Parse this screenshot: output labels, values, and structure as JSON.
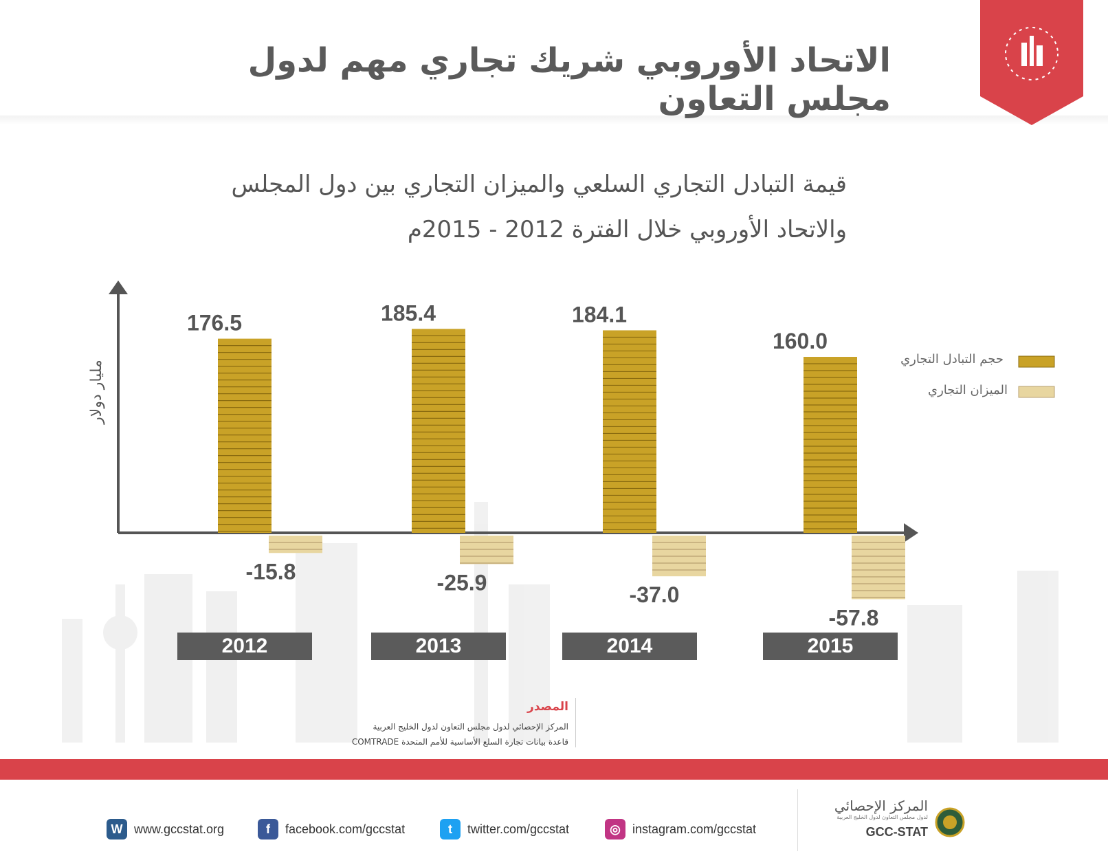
{
  "header": {
    "title": "الاتحاد الأوروبي شريك تجاري مهم لدول مجلس التعاون"
  },
  "chart_data": {
    "type": "bar",
    "title_lines": [
      "قيمة التبادل التجاري السلعي والميزان التجاري بين دول المجلس",
      "والاتحاد الأوروبي خلال الفترة 2012 - 2015م"
    ],
    "ylabel": "مليار دولار",
    "categories": [
      "2012",
      "2013",
      "2014",
      "2015"
    ],
    "series": [
      {
        "name": "حجم التبادل التجاري",
        "values": [
          176.5,
          185.4,
          184.1,
          160.0
        ],
        "labels": [
          "176.5",
          "185.4",
          "184.1",
          "160.0"
        ]
      },
      {
        "name": "الميزان التجاري",
        "values": [
          -15.8,
          -25.9,
          -37.0,
          -57.8
        ],
        "labels": [
          "-15.8",
          "-25.9",
          "-37.0",
          "-57.8"
        ]
      }
    ],
    "colors": {
      "trade_volume": "#c9a227",
      "trade_balance": "#e8d6a0"
    },
    "legend_position": "right"
  },
  "source": {
    "title": "المصدر",
    "lines": [
      "المركز الإحصائي لدول مجلس التعاون لدول الخليج العربية",
      "قاعدة بيانات تجارة السلع الأساسية للأمم المتحدة COMTRADE"
    ]
  },
  "footer": {
    "links": [
      {
        "icon": "wordpress-icon",
        "text": "www.gccstat.org"
      },
      {
        "icon": "facebook-icon",
        "text": "facebook.com/gccstat"
      },
      {
        "icon": "twitter-icon",
        "text": "twitter.com/gccstat"
      },
      {
        "icon": "instagram-icon",
        "text": "instagram.com/gccstat"
      }
    ],
    "logo_arabic": "المركز الإحصائي",
    "logo_sub": "لدول مجلس التعاون لدول الخليج العربية",
    "logo_en": "GCC-STAT"
  },
  "colors": {
    "brand_red": "#d9434a",
    "gray_box": "#5b5b5b"
  }
}
